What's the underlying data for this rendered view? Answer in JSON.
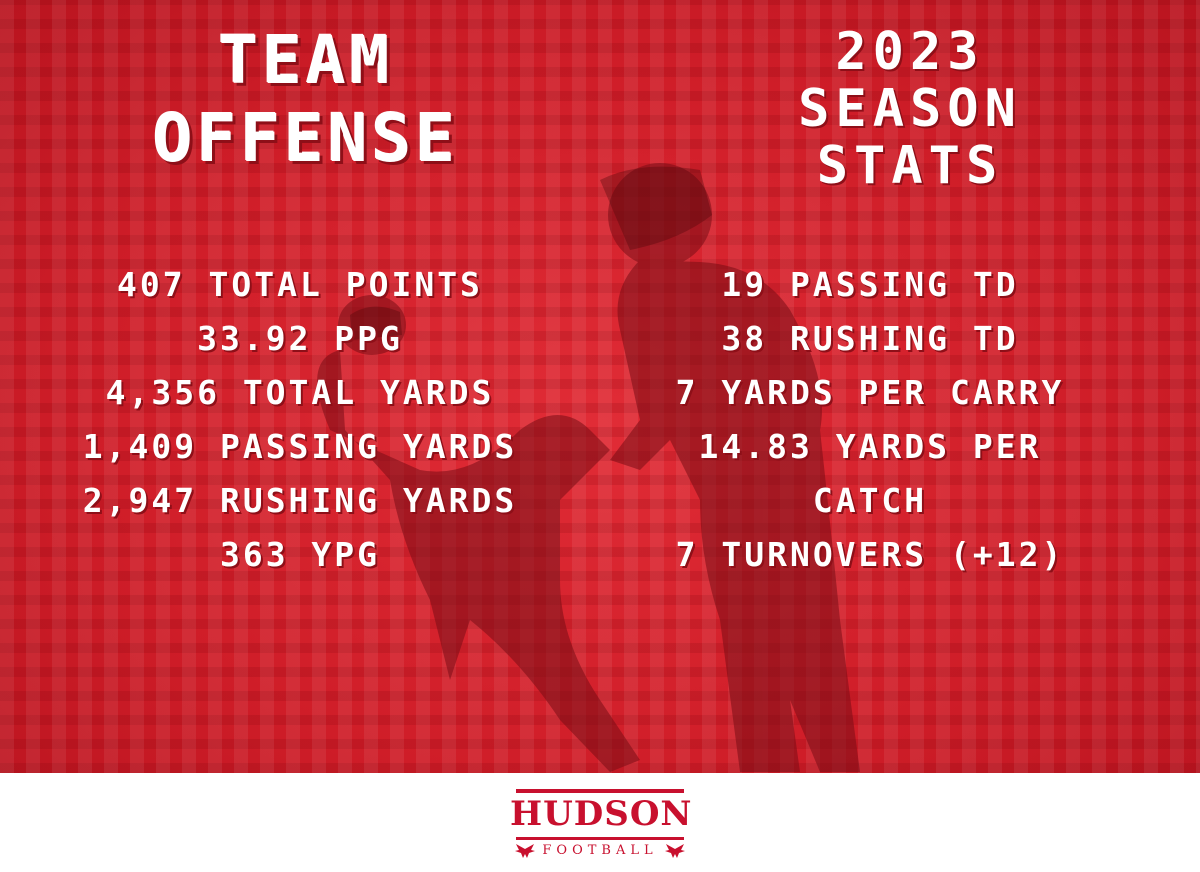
{
  "header": {
    "title_left_line1": "TEAM",
    "title_left_line2": "OFFENSE",
    "title_right_line1": "2023",
    "title_right_line2": "SEASON",
    "title_right_line3": "STATS"
  },
  "stats_left": [
    "407 TOTAL POINTS",
    "33.92 PPG",
    "4,356 TOTAL YARDS",
    "1,409 PASSING YARDS",
    "2,947 RUSHING YARDS",
    "363 YPG"
  ],
  "stats_right": [
    "19 PASSING TD",
    "38 RUSHING TD",
    "7 YARDS PER CARRY",
    "14.83 YARDS PER",
    "CATCH",
    "7 TURNOVERS (+12)"
  ],
  "logo": {
    "name": "HUDSON",
    "sub": "FOOTBALL",
    "icon": "hawk-icon"
  },
  "colors": {
    "background_red": "#d8232d",
    "brand_red": "#c8102e",
    "text": "#ffffff",
    "footer_bg": "#ffffff"
  }
}
